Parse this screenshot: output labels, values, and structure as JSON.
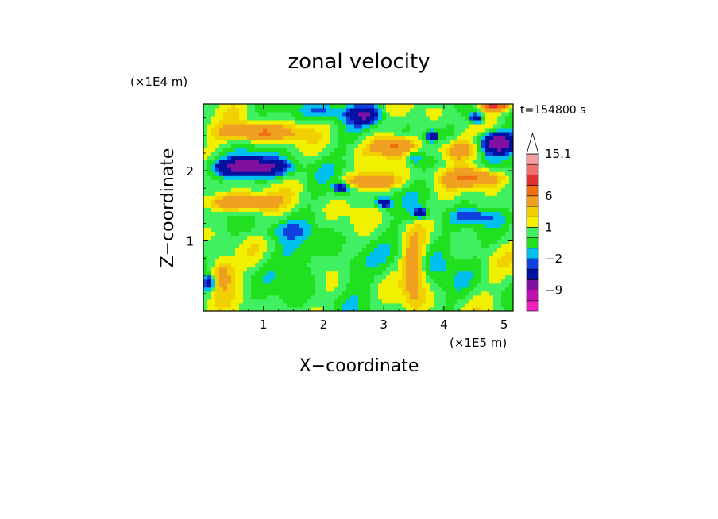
{
  "chart_data": {
    "type": "heatmap",
    "title": "zonal velocity",
    "xlabel": "X−coordinate",
    "ylabel": "Z−coordinate",
    "x_unit": "(×1E5 m)",
    "y_unit": "(×1E4 m)",
    "time_label": "t=154800 s",
    "xlim": [
      0,
      5.15
    ],
    "ylim": [
      0,
      2.95
    ],
    "x_ticks": [
      1,
      2,
      3,
      4,
      5
    ],
    "y_ticks": [
      1,
      2
    ],
    "x_tick_labels": [
      "1",
      "2",
      "3",
      "4",
      "5"
    ],
    "y_tick_labels": [
      "1",
      "2"
    ],
    "colorbar": {
      "levels_bottom_to_top": [
        -15,
        -12,
        -9,
        -6,
        -3,
        -2,
        -1,
        0,
        1,
        2,
        3,
        6,
        9,
        12,
        15.1
      ],
      "colors_bottom_to_top": [
        "#f020c0",
        "#c010b0",
        "#8010a0",
        "#0010a0",
        "#1040e0",
        "#00c0f0",
        "#20e020",
        "#40f060",
        "#f0f000",
        "#f0d000",
        "#f0a020",
        "#f07010",
        "#e03030",
        "#f07070",
        "#f0a0a0"
      ],
      "tick_labels": [
        {
          "label": "15.1",
          "value": 15.1
        },
        {
          "label": "6",
          "value": 6
        },
        {
          "label": "1",
          "value": 1
        },
        {
          "label": "−2",
          "value": -2
        },
        {
          "label": "−9",
          "value": -9
        }
      ],
      "extend": "max"
    },
    "features": [
      {
        "x": 0.75,
        "z": 2.05,
        "u": -9,
        "rx": 0.6,
        "rz": 0.13
      },
      {
        "x": 4.9,
        "z": 2.4,
        "u": -9,
        "rx": 0.3,
        "rz": 0.15
      },
      {
        "x": 2.7,
        "z": 2.8,
        "u": -6,
        "rx": 0.25,
        "rz": 0.12
      },
      {
        "x": 4.55,
        "z": 2.75,
        "u": -6,
        "rx": 0.12,
        "rz": 0.08
      },
      {
        "x": 2.3,
        "z": 1.75,
        "u": -6,
        "rx": 0.12,
        "rz": 0.07
      },
      {
        "x": 3.0,
        "z": 1.55,
        "u": -6,
        "rx": 0.12,
        "rz": 0.07
      },
      {
        "x": 3.6,
        "z": 1.4,
        "u": -6,
        "rx": 0.1,
        "rz": 0.07
      },
      {
        "x": 3.8,
        "z": 2.5,
        "u": -6,
        "rx": 0.09,
        "rz": 0.07
      },
      {
        "x": 3.5,
        "z": 2.2,
        "u": -3,
        "rx": 0.15,
        "rz": 0.12
      },
      {
        "x": 3.2,
        "z": 2.35,
        "u": 6,
        "rx": 0.35,
        "rz": 0.13
      },
      {
        "x": 0.9,
        "z": 2.55,
        "u": 6,
        "rx": 0.6,
        "rz": 0.12
      },
      {
        "x": 0.6,
        "z": 1.55,
        "u": 6,
        "rx": 0.55,
        "rz": 0.12
      },
      {
        "x": 4.5,
        "z": 1.9,
        "u": 6,
        "rx": 0.45,
        "rz": 0.12
      },
      {
        "x": 2.8,
        "z": 1.85,
        "u": 6,
        "rx": 0.4,
        "rz": 0.1
      },
      {
        "x": 4.85,
        "z": 2.95,
        "u": 10,
        "rx": 0.2,
        "rz": 0.08
      },
      {
        "x": 1.5,
        "z": 0.75,
        "u": -1.5,
        "rx": 0.4,
        "rz": 0.3
      },
      {
        "x": 2.4,
        "z": 0.6,
        "u": -1.5,
        "rx": 0.3,
        "rz": 0.25
      },
      {
        "x": 3.9,
        "z": 0.8,
        "u": -1.5,
        "rx": 0.3,
        "rz": 0.4
      },
      {
        "x": 1.3,
        "z": 1.15,
        "u": -1.5,
        "rx": 0.5,
        "rz": 0.12
      },
      {
        "x": 4.5,
        "z": 1.35,
        "u": -2.5,
        "rx": 0.4,
        "rz": 0.1
      },
      {
        "x": 2.0,
        "z": 2.85,
        "u": -2.5,
        "rx": 0.4,
        "rz": 0.12
      },
      {
        "x": 4.2,
        "z": 2.3,
        "u": 4,
        "rx": 0.35,
        "rz": 0.15
      },
      {
        "x": 0.3,
        "z": 0.55,
        "u": 4,
        "rx": 0.2,
        "rz": 0.25
      },
      {
        "x": 3.5,
        "z": 0.6,
        "u": 4,
        "rx": 0.18,
        "rz": 0.5
      },
      {
        "x": 0.1,
        "z": 0.4,
        "u": -6,
        "rx": 0.08,
        "rz": 0.1
      }
    ]
  }
}
